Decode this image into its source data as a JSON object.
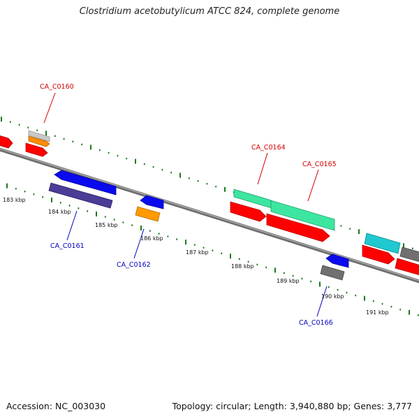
{
  "title": "Clostridium acetobutylicum ATCC 824, complete genome",
  "footer": {
    "accession": "Accession: NC_003030",
    "summary": "Topology: circular; Length: 3,940,880 bp; Genes: 3,777"
  },
  "colors": {
    "backbone": "#7a7a7a",
    "tick": "#1b7a1b",
    "label_top": "#d10000",
    "label_bottom": "#0000c0"
  },
  "kbp_labels": [
    "183 kbp",
    "184 kbp",
    "185 kbp",
    "186 kbp",
    "187 kbp",
    "188 kbp",
    "189 kbp",
    "190 kbp",
    "191 kbp"
  ],
  "gene_labels": {
    "top": [
      "CA_C0160",
      "CA_C0164",
      "CA_C0165"
    ],
    "bottom": [
      "CA_C0161",
      "CA_C0162",
      "CA_C0166"
    ]
  }
}
